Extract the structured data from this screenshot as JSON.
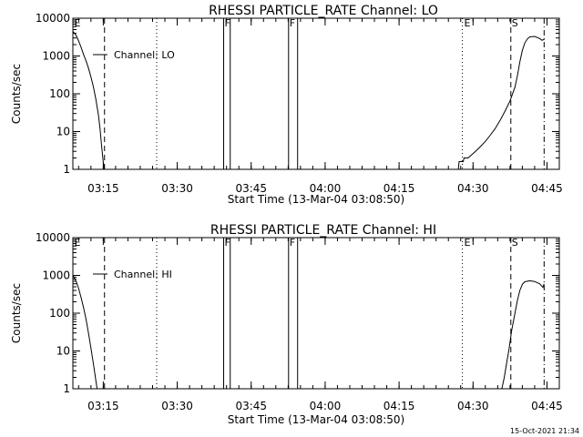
{
  "chart_data": [
    {
      "type": "line",
      "title": "RHESSI PARTICLE_RATE Channel: LO",
      "xlabel": "Start Time (13-Mar-04 03:08:50)",
      "ylabel": "Counts/sec",
      "y_scale": "log",
      "ylim": [
        1,
        10000
      ],
      "xlim": [
        "03:08:50",
        "04:47:30"
      ],
      "x_tick_labels": [
        "03:15",
        "03:30",
        "03:45",
        "04:00",
        "04:15",
        "04:30",
        "04:45"
      ],
      "y_tick_labels": [
        "1",
        "10",
        "100",
        "1000",
        "10000"
      ],
      "legend": {
        "position": "top-left",
        "label": "Channel: LO"
      },
      "series": [
        {
          "name": "Channel: LO",
          "points": [
            [
              "03:08:50",
              4500
            ],
            [
              "03:09:30",
              3500
            ],
            [
              "03:10:00",
              2500
            ],
            [
              "03:10:30",
              1700
            ],
            [
              "03:11:00",
              1100
            ],
            [
              "03:11:30",
              750
            ],
            [
              "03:12:00",
              480
            ],
            [
              "03:12:30",
              280
            ],
            [
              "03:13:00",
              150
            ],
            [
              "03:13:30",
              70
            ],
            [
              "03:14:00",
              28
            ],
            [
              "03:14:20",
              12
            ],
            [
              "03:14:40",
              4
            ],
            [
              "03:15:00",
              1.5
            ],
            [
              "03:15:15",
              1
            ]
          ]
        },
        {
          "name": "Channel: LO",
          "points": [
            [
              "04:27:00",
              1
            ],
            [
              "04:27:10",
              1.6
            ],
            [
              "04:28:00",
              1.6
            ],
            [
              "04:28:10",
              2.0
            ],
            [
              "04:29:00",
              2.0
            ],
            [
              "04:29:40",
              2.4
            ],
            [
              "04:30:30",
              3.0
            ],
            [
              "04:31:30",
              4.0
            ],
            [
              "04:32:30",
              5.5
            ],
            [
              "04:33:30",
              8
            ],
            [
              "04:34:30",
              12
            ],
            [
              "04:35:30",
              20
            ],
            [
              "04:36:30",
              35
            ],
            [
              "04:37:30",
              65
            ],
            [
              "04:38:30",
              150
            ],
            [
              "04:39:00",
              300
            ],
            [
              "04:39:30",
              700
            ],
            [
              "04:40:00",
              1400
            ],
            [
              "04:40:30",
              2200
            ],
            [
              "04:41:00",
              2800
            ],
            [
              "04:41:30",
              3200
            ],
            [
              "04:42:30",
              3300
            ],
            [
              "04:43:30",
              2900
            ],
            [
              "04:44:00",
              2600
            ],
            [
              "04:44:30",
              2800
            ]
          ]
        }
      ],
      "flag_lines": [
        {
          "style": "dashed",
          "x": "03:15:15"
        },
        {
          "style": "dotted",
          "x": "03:25:50"
        },
        {
          "style": "dotted",
          "x": "04:27:50"
        },
        {
          "style": "dashed",
          "x": "04:37:40"
        },
        {
          "style": "dash-dot",
          "x": "04:44:25"
        }
      ],
      "fast_rate_bars": [
        {
          "x_start": "03:39:25",
          "x_end": "03:40:45"
        },
        {
          "x_start": "03:52:35",
          "x_end": "03:54:25"
        }
      ],
      "annotations": [
        {
          "text": "E",
          "x": "03:08:55"
        },
        {
          "text": "F",
          "x": "03:39:25"
        },
        {
          "text": "F",
          "x": "03:52:35"
        },
        {
          "text": "E",
          "x": "04:28:00"
        },
        {
          "text": "S",
          "x": "04:37:40"
        }
      ]
    },
    {
      "type": "line",
      "title": "RHESSI PARTICLE_RATE Channel: HI",
      "xlabel": "Start Time (13-Mar-04 03:08:50)",
      "ylabel": "Counts/sec",
      "y_scale": "log",
      "ylim": [
        1,
        10000
      ],
      "xlim": [
        "03:08:50",
        "04:47:30"
      ],
      "x_tick_labels": [
        "03:15",
        "03:30",
        "03:45",
        "04:00",
        "04:15",
        "04:30",
        "04:45"
      ],
      "y_tick_labels": [
        "1",
        "10",
        "100",
        "1000",
        "10000"
      ],
      "legend": {
        "position": "top-left",
        "label": "Channel: HI"
      },
      "series": [
        {
          "name": "Channel: HI",
          "points": [
            [
              "03:08:50",
              1000
            ],
            [
              "03:09:30",
              700
            ],
            [
              "03:10:00",
              450
            ],
            [
              "03:10:30",
              260
            ],
            [
              "03:11:00",
              140
            ],
            [
              "03:11:30",
              70
            ],
            [
              "03:12:00",
              30
            ],
            [
              "03:12:30",
              12
            ],
            [
              "03:13:00",
              4.5
            ],
            [
              "03:13:30",
              1.6
            ],
            [
              "03:13:45",
              1
            ]
          ]
        },
        {
          "name": "Channel: HI",
          "points": [
            [
              "04:35:50",
              1
            ],
            [
              "04:36:20",
              2
            ],
            [
              "04:36:50",
              5
            ],
            [
              "04:37:20",
              12
            ],
            [
              "04:37:50",
              35
            ],
            [
              "04:38:30",
              100
            ],
            [
              "04:39:00",
              220
            ],
            [
              "04:39:30",
              400
            ],
            [
              "04:40:00",
              580
            ],
            [
              "04:40:30",
              680
            ],
            [
              "04:41:30",
              720
            ],
            [
              "04:42:30",
              690
            ],
            [
              "04:43:30",
              600
            ],
            [
              "04:44:10",
              480
            ],
            [
              "04:44:25",
              600
            ]
          ]
        }
      ],
      "flag_lines": [
        {
          "style": "dashed",
          "x": "03:15:15"
        },
        {
          "style": "dotted",
          "x": "03:25:50"
        },
        {
          "style": "dotted",
          "x": "04:27:50"
        },
        {
          "style": "dashed",
          "x": "04:37:40"
        },
        {
          "style": "dash-dot",
          "x": "04:44:25"
        }
      ],
      "fast_rate_bars": [
        {
          "x_start": "03:39:25",
          "x_end": "03:40:45"
        },
        {
          "x_start": "03:52:35",
          "x_end": "03:54:25"
        }
      ],
      "annotations": [
        {
          "text": "E",
          "x": "03:08:55"
        },
        {
          "text": "F",
          "x": "03:39:25"
        },
        {
          "text": "F",
          "x": "03:52:35"
        },
        {
          "text": "E",
          "x": "04:28:00"
        },
        {
          "text": "S",
          "x": "04:37:40"
        }
      ]
    }
  ],
  "footer": {
    "timestamp": "15-Oct-2021 21:34"
  }
}
